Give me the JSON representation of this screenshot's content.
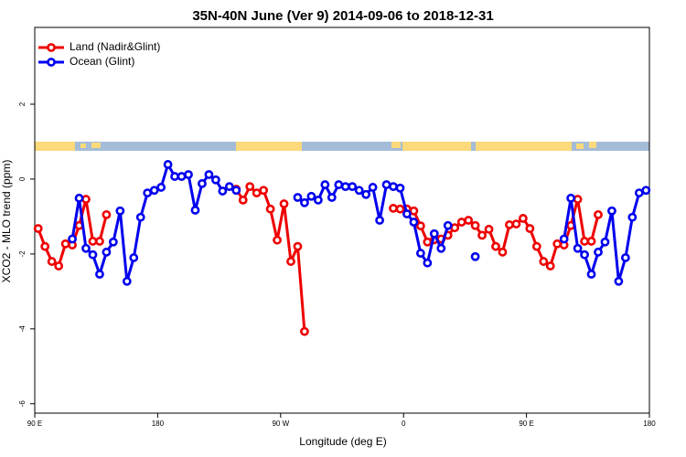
{
  "chart_data": {
    "type": "line",
    "title": "35N-40N June (Ver 9)   2014-09-06 to 2018-12-31",
    "xlabel": "Longitude (deg E)",
    "ylabel": "XCO2 - MLO trend (ppm)",
    "xlim": [
      90,
      540
    ],
    "xticks": [
      {
        "value": 90,
        "label": "90 E"
      },
      180,
      {
        "value": 270,
        "label": "90 W"
      },
      {
        "value": 360,
        "label": "0"
      },
      {
        "value": 450,
        "label": "90 E"
      },
      {
        "value": 540,
        "label": "180"
      }
    ],
    "ylim": [
      -6.25,
      4.05
    ],
    "yticks": [
      -6,
      -4,
      -2,
      0,
      2
    ],
    "legend": "upper left",
    "x": [
      92.5,
      97.5,
      102.5,
      107.5,
      112.5,
      117.5,
      122.5,
      127.5,
      132.5,
      137.5,
      142.5,
      147.5,
      152.5,
      157.5,
      162.5,
      167.5,
      172.5,
      177.5,
      182.5,
      187.5,
      192.5,
      197.5,
      202.5,
      207.5,
      212.5,
      217.5,
      222.5,
      227.5,
      232.5,
      237.5,
      242.5,
      247.5,
      252.5,
      257.5,
      262.5,
      267.5,
      272.5,
      277.5,
      282.5,
      287.5,
      292.5,
      297.5,
      302.5,
      307.5,
      312.5,
      317.5,
      322.5,
      327.5,
      332.5,
      337.5,
      342.5,
      347.5,
      352.5,
      357.5,
      362.5,
      367.5,
      372.5,
      377.5,
      382.5,
      387.5,
      392.5,
      397.5,
      402.5,
      407.5,
      412.5,
      417.5,
      422.5,
      427.5,
      432.5,
      437.5,
      442.5,
      447.5,
      452.5,
      457.5,
      462.5,
      467.5,
      472.5,
      477.5,
      482.5,
      487.5,
      492.5,
      497.5,
      502.5,
      507.5,
      512.5,
      517.5,
      522.5,
      527.5,
      532.5,
      537.5
    ],
    "series": [
      {
        "name": "Land (Nadir&Glint)",
        "color": "#ee0000",
        "values": [
          -1.32,
          -1.8,
          -2.2,
          -2.32,
          -1.73,
          -1.76,
          -1.24,
          -0.54,
          -1.66,
          -1.66,
          -0.95,
          null,
          null,
          null,
          null,
          null,
          null,
          null,
          null,
          null,
          null,
          null,
          null,
          null,
          null,
          null,
          null,
          null,
          null,
          -0.27,
          -0.56,
          -0.2,
          -0.37,
          -0.3,
          -0.8,
          -1.63,
          -0.66,
          -2.2,
          -1.8,
          -4.07,
          null,
          null,
          null,
          null,
          null,
          null,
          null,
          null,
          null,
          null,
          null,
          null,
          -0.78,
          -0.8,
          -0.8,
          -0.85,
          -1.25,
          -1.68,
          -1.62,
          -1.6,
          -1.5,
          -1.3,
          -1.15,
          -1.1,
          -1.24,
          -1.5,
          -1.34,
          -1.8,
          -1.95,
          -1.22,
          -1.2,
          -1.05,
          -1.32,
          -1.8,
          -2.2,
          -2.32,
          -1.73,
          -1.76,
          -1.24,
          -0.54,
          -1.66,
          -1.66,
          -0.95,
          null,
          null,
          null,
          null,
          null,
          null,
          null
        ]
      },
      {
        "name": "Ocean (Glint)",
        "color": "#0000ee",
        "values": [
          null,
          null,
          null,
          null,
          null,
          -1.6,
          -0.51,
          -1.85,
          -2.02,
          -2.54,
          -1.95,
          -1.68,
          -0.85,
          -2.73,
          -2.1,
          -1.02,
          -0.37,
          -0.3,
          -0.22,
          0.39,
          0.07,
          0.07,
          0.12,
          -0.83,
          -0.12,
          0.12,
          -0.02,
          -0.32,
          -0.2,
          -0.3,
          null,
          null,
          null,
          null,
          null,
          null,
          null,
          null,
          -0.49,
          -0.63,
          -0.46,
          -0.56,
          -0.15,
          -0.49,
          -0.15,
          -0.2,
          -0.2,
          -0.3,
          -0.41,
          -0.22,
          -1.1,
          -0.15,
          -0.2,
          -0.24,
          -0.93,
          -1.15,
          -1.98,
          -2.24,
          -1.46,
          -1.85,
          -1.24,
          null,
          null,
          null,
          -2.07,
          null,
          null,
          null,
          null,
          null,
          null,
          null,
          null,
          null,
          null,
          null,
          null,
          -1.6,
          -0.51,
          -1.85,
          -2.02,
          -2.54,
          -1.95,
          -1.68,
          -0.85,
          -2.73,
          -2.1,
          -1.02,
          -0.37,
          -0.3
        ]
      }
    ]
  }
}
